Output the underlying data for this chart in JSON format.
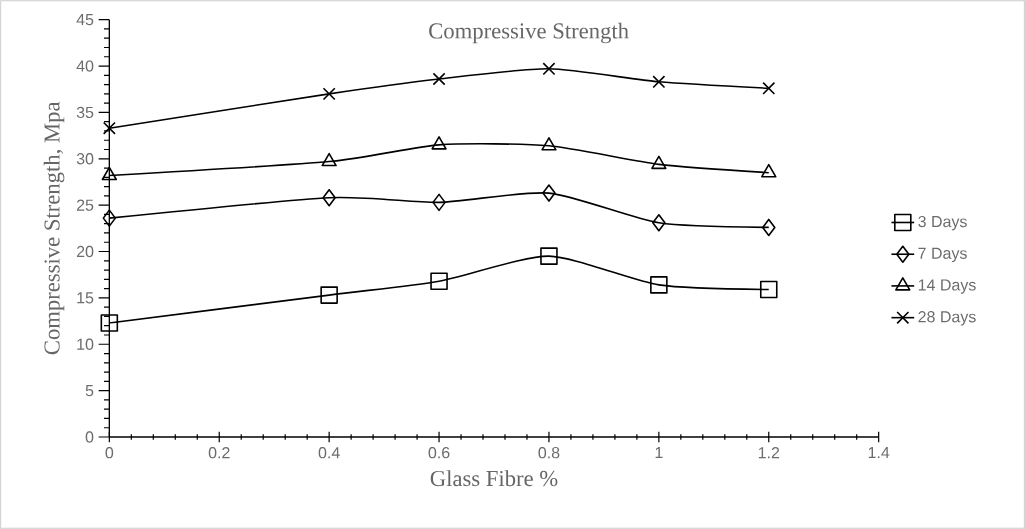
{
  "chart_data": {
    "type": "line",
    "title": "Compressive Strength",
    "xlabel": "Glass Fibre %",
    "ylabel": "Compressive Strength, Mpa",
    "x": [
      0,
      0.4,
      0.6,
      0.8,
      1,
      1.2
    ],
    "series": [
      {
        "name": "3 Days",
        "color": "#000000",
        "marker": "square",
        "values": [
          12.3,
          15.3,
          16.8,
          19.5,
          16.4,
          15.9
        ]
      },
      {
        "name": "7 Days",
        "color": "#000000",
        "marker": "diamond",
        "values": [
          23.6,
          25.8,
          25.3,
          26.3,
          23.1,
          22.6
        ]
      },
      {
        "name": "14 Days",
        "color": "#000000",
        "marker": "triangle",
        "values": [
          28.2,
          29.7,
          31.5,
          31.4,
          29.4,
          28.5
        ]
      },
      {
        "name": "28 Days",
        "color": "#000000",
        "marker": "cross",
        "values": [
          33.3,
          37.0,
          38.6,
          39.7,
          38.3,
          37.6
        ]
      }
    ],
    "xlim": [
      0,
      1.4
    ],
    "xticks": [
      0,
      0.2,
      0.4,
      0.6,
      0.8,
      1,
      1.2,
      1.4
    ],
    "ylim": [
      0,
      45
    ],
    "yticks": [
      0,
      5,
      10,
      15,
      20,
      25,
      30,
      35,
      40,
      45
    ],
    "grid": false,
    "legend": "right",
    "line_style": "solid"
  }
}
